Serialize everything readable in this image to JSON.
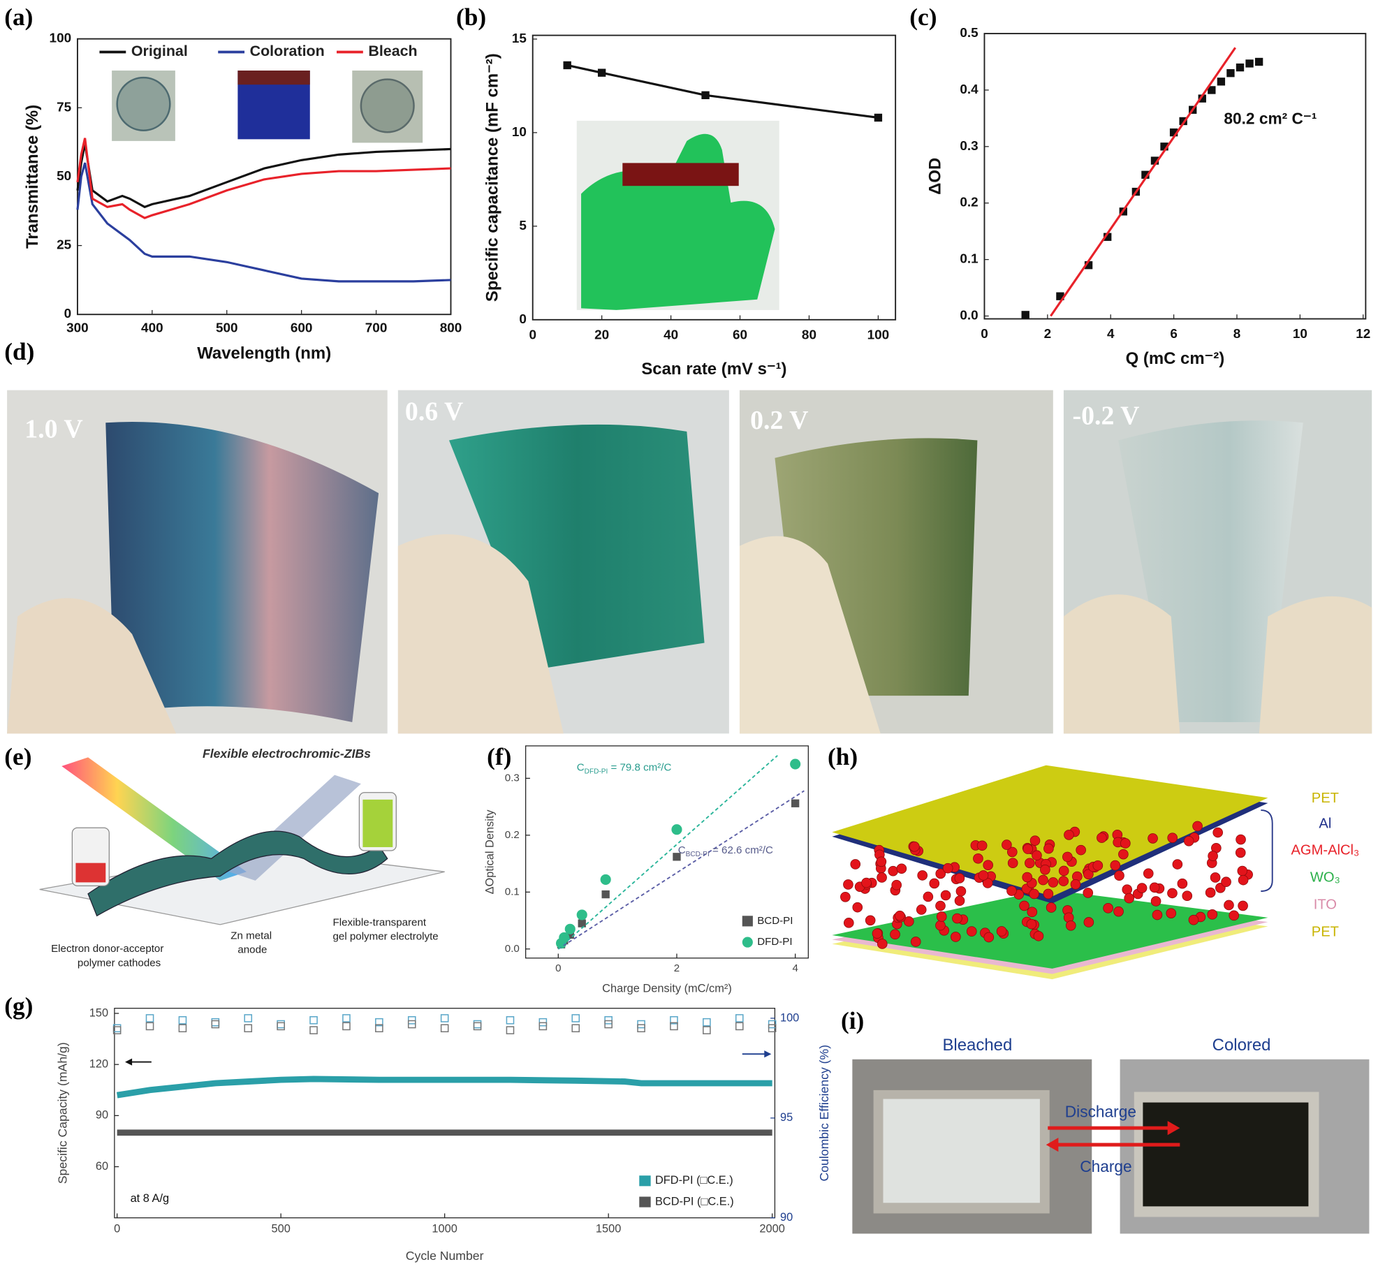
{
  "chart_data": [
    {
      "type": "line",
      "panel": "(a)",
      "xlabel": "Wavelength (nm)",
      "ylabel": "Transmittance (%)",
      "x": [
        300,
        305,
        310,
        320,
        340,
        360,
        370,
        390,
        400,
        450,
        500,
        550,
        600,
        650,
        700,
        750,
        800
      ],
      "xlim": [
        300,
        800
      ],
      "xticks": [
        300,
        400,
        500,
        600,
        700,
        800
      ],
      "ylim": [
        0,
        100
      ],
      "yticks": [
        0,
        25,
        50,
        75,
        100
      ],
      "legend": "top",
      "series": [
        {
          "name": "Original",
          "color": "#111111",
          "line": "solid",
          "marker": "none",
          "line_width": 2.5,
          "values": [
            45,
            55,
            62,
            45,
            41,
            43,
            42,
            39,
            40,
            43,
            48,
            53,
            56,
            58,
            59,
            59.5,
            60
          ]
        },
        {
          "name": "Coloration",
          "color": "#2b3f9e",
          "line": "solid",
          "marker": "none",
          "line_width": 2.5,
          "values": [
            38,
            50,
            55,
            40,
            33,
            29,
            27,
            22,
            21,
            21,
            19,
            16,
            13,
            12,
            12,
            12,
            12.5
          ]
        },
        {
          "name": "Bleach",
          "color": "#e8222a",
          "line": "solid",
          "marker": "none",
          "line_width": 2.5,
          "values": [
            48,
            58,
            64,
            42,
            39,
            40,
            38,
            35,
            36,
            40,
            45,
            49,
            51,
            52,
            52,
            52.5,
            53
          ]
        }
      ]
    },
    {
      "type": "line",
      "panel": "(b)",
      "xlabel": "Scan rate (mV s⁻¹)",
      "ylabel": "Specific capacitance (mF cm⁻²)",
      "x": [
        10,
        20,
        50,
        100
      ],
      "xlim": [
        0,
        105
      ],
      "xticks": [
        0,
        20,
        40,
        60,
        80,
        100
      ],
      "ylim": [
        0,
        15.2
      ],
      "yticks": [
        0,
        5,
        10,
        15
      ],
      "series": [
        {
          "color": "#111111",
          "line": "solid",
          "marker": "square",
          "line_width": 2.5,
          "values": [
            13.6,
            13.2,
            12.0,
            10.8
          ]
        }
      ]
    },
    {
      "type": "scatter",
      "panel": "(c)",
      "xlabel": "Q (mC cm⁻²)",
      "ylabel": "ΔOD",
      "xlim": [
        0,
        12.08
      ],
      "xticks": [
        0,
        2,
        4,
        6,
        8,
        10,
        12
      ],
      "ylim": [
        -0.005,
        0.5
      ],
      "yticks": [
        {
          "value": 0,
          "label": "0.0"
        },
        0.1,
        0.2,
        0.3,
        0.4,
        0.5
      ],
      "annotations": [
        {
          "text": "80.2 cm² C⁻¹"
        }
      ],
      "series": [
        {
          "color": "#111111",
          "line": "none",
          "marker": "square",
          "x": [
            1.3,
            2.4,
            3.3,
            3.9,
            4.4,
            4.8,
            5.1,
            5.4,
            5.7,
            6.0,
            6.3,
            6.6,
            6.9,
            7.2,
            7.5,
            7.8,
            8.1,
            8.4,
            8.7
          ],
          "values": [
            0.002,
            0.035,
            0.09,
            0.14,
            0.185,
            0.22,
            0.25,
            0.275,
            0.3,
            0.325,
            0.345,
            0.365,
            0.385,
            0.4,
            0.415,
            0.43,
            0.44,
            0.447,
            0.45
          ]
        },
        {
          "color": "#e8222a",
          "line": "solid",
          "marker": "none",
          "line_width": 2.5,
          "x": [
            2.1,
            7.95
          ],
          "values": [
            0,
            0.475
          ]
        }
      ]
    },
    {
      "type": "scatter",
      "panel": "(f)",
      "xlabel": "Charge Density (mC/cm²)",
      "ylabel": "ΔOptical Density",
      "xlim": [
        -0.55,
        4.22
      ],
      "xticks": [
        0,
        2,
        4
      ],
      "ylim": [
        -0.016,
        0.357
      ],
      "yticks": [
        {
          "value": 0,
          "label": "0.0"
        },
        0.1,
        0.2,
        0.3
      ],
      "legend": "bottom-right",
      "annotations": [
        {
          "text": "C",
          "sub": "DFD-PI",
          "tail": " = 79.8 cm²/C",
          "color": "#2a9d8f"
        },
        {
          "text": "C",
          "sub": "BCD-PI",
          "tail": " = 62.6 cm²/C",
          "color": "#555a8a"
        }
      ],
      "series": [
        {
          "name": "BCD-PI",
          "color": "#555555",
          "line": "none",
          "marker": "square",
          "x": [
            0.05,
            0.1,
            0.2,
            0.4,
            0.8,
            2,
            4
          ],
          "values": [
            0.008,
            0.015,
            0.025,
            0.045,
            0.096,
            0.162,
            0.256
          ]
        },
        {
          "name": "DFD-PI",
          "color": "#2ebd8a",
          "line": "none",
          "marker": "circle",
          "x": [
            0.05,
            0.1,
            0.2,
            0.4,
            0.8,
            2,
            4
          ],
          "values": [
            0.01,
            0.02,
            0.035,
            0.06,
            0.122,
            0.21,
            0.325
          ]
        },
        {
          "color": "#5b5ea6",
          "line": "dash",
          "marker": "none",
          "line_width": 1.5,
          "x": [
            0,
            4.15
          ],
          "values": [
            0,
            0.278
          ]
        },
        {
          "color": "#2ab59a",
          "line": "dash",
          "marker": "none",
          "line_width": 1.5,
          "x": [
            0,
            3.7
          ],
          "values": [
            0,
            0.34
          ]
        }
      ]
    },
    {
      "type": "line",
      "panel": "(g)",
      "xlabel": "Cycle Number",
      "ylabel": "Specific Capacity (mAh/g)",
      "y2label": "Coulombic Efficiency (%)",
      "xlim": [
        -8,
        2008
      ],
      "xticks": [
        0,
        500,
        1000,
        1500,
        2000
      ],
      "ylim": [
        30,
        153
      ],
      "yticks": [
        60,
        90,
        120,
        150
      ],
      "y2lim": [
        90,
        100.5
      ],
      "y2ticks": [
        90,
        95,
        100
      ],
      "legend": "bottom-right",
      "legend_symbol": "square",
      "annotations": [
        {
          "text": "at 8 A/g"
        }
      ],
      "series": [
        {
          "name": "DFD-PI (□C.E.)",
          "color": "#2a9fa8",
          "line": "solid",
          "marker": "none",
          "line_width": 7,
          "x": [
            0,
            100,
            200,
            300,
            400,
            500,
            600,
            800,
            1000,
            1200,
            1400,
            1550,
            1600,
            1800,
            2000
          ],
          "values": [
            102,
            105,
            107,
            109,
            110,
            111,
            111.5,
            111,
            111,
            111,
            110.5,
            110,
            109,
            109,
            109
          ]
        },
        {
          "name": "BCD-PI (□C.E.)",
          "color": "#555555",
          "line": "solid",
          "marker": "none",
          "line_width": 7,
          "x": [
            0,
            2000
          ],
          "values": [
            80,
            80
          ]
        },
        {
          "color": "#5aa7c9",
          "line": "none",
          "marker": "open-square",
          "axis": "y2",
          "x": [
            0,
            100,
            200,
            300,
            400,
            500,
            600,
            700,
            800,
            900,
            1000,
            1100,
            1200,
            1300,
            1400,
            1500,
            1600,
            1700,
            1800,
            1900,
            2000
          ],
          "values": [
            99.5,
            100.0,
            99.9,
            99.8,
            100.0,
            99.7,
            99.9,
            100.0,
            99.8,
            99.9,
            100.0,
            99.7,
            99.9,
            99.8,
            100.0,
            99.9,
            99.7,
            99.9,
            99.8,
            100.0,
            99.7
          ]
        },
        {
          "color": "#777777",
          "line": "none",
          "marker": "open-square",
          "axis": "y2",
          "x": [
            0,
            100,
            200,
            300,
            400,
            500,
            600,
            700,
            800,
            900,
            1000,
            1100,
            1200,
            1300,
            1400,
            1500,
            1600,
            1700,
            1800,
            1900,
            2000
          ],
          "values": [
            99.4,
            99.6,
            99.5,
            99.7,
            99.5,
            99.6,
            99.4,
            99.6,
            99.5,
            99.7,
            99.5,
            99.6,
            99.4,
            99.6,
            99.5,
            99.7,
            99.5,
            99.6,
            99.4,
            99.6,
            99.5
          ]
        }
      ]
    }
  ],
  "panels": {
    "d": "(d)",
    "e": "(e)",
    "h": "(h)",
    "i": "(i)"
  },
  "photos": [
    {
      "label": "1.0 V"
    },
    {
      "label": "0.6 V"
    },
    {
      "label": "0.2 V"
    },
    {
      "label": "-0.2 V"
    }
  ],
  "diagram_e": {
    "title": "Flexible electrochromic-ZIBs",
    "labels": [
      "Electron donor-acceptor",
      "polymer cathodes",
      "Zn metal",
      "anode",
      "Flexible-transparent",
      "gel polymer electrolyte"
    ]
  },
  "diagram_h": {
    "layers": [
      "PET",
      "Al",
      "AGM-AlCl₃",
      "WO₃",
      "ITO",
      "PET"
    ]
  },
  "diagram_i": {
    "states": [
      "Bleached",
      "Colored"
    ],
    "arrows": [
      "Discharge",
      "Charge"
    ]
  }
}
